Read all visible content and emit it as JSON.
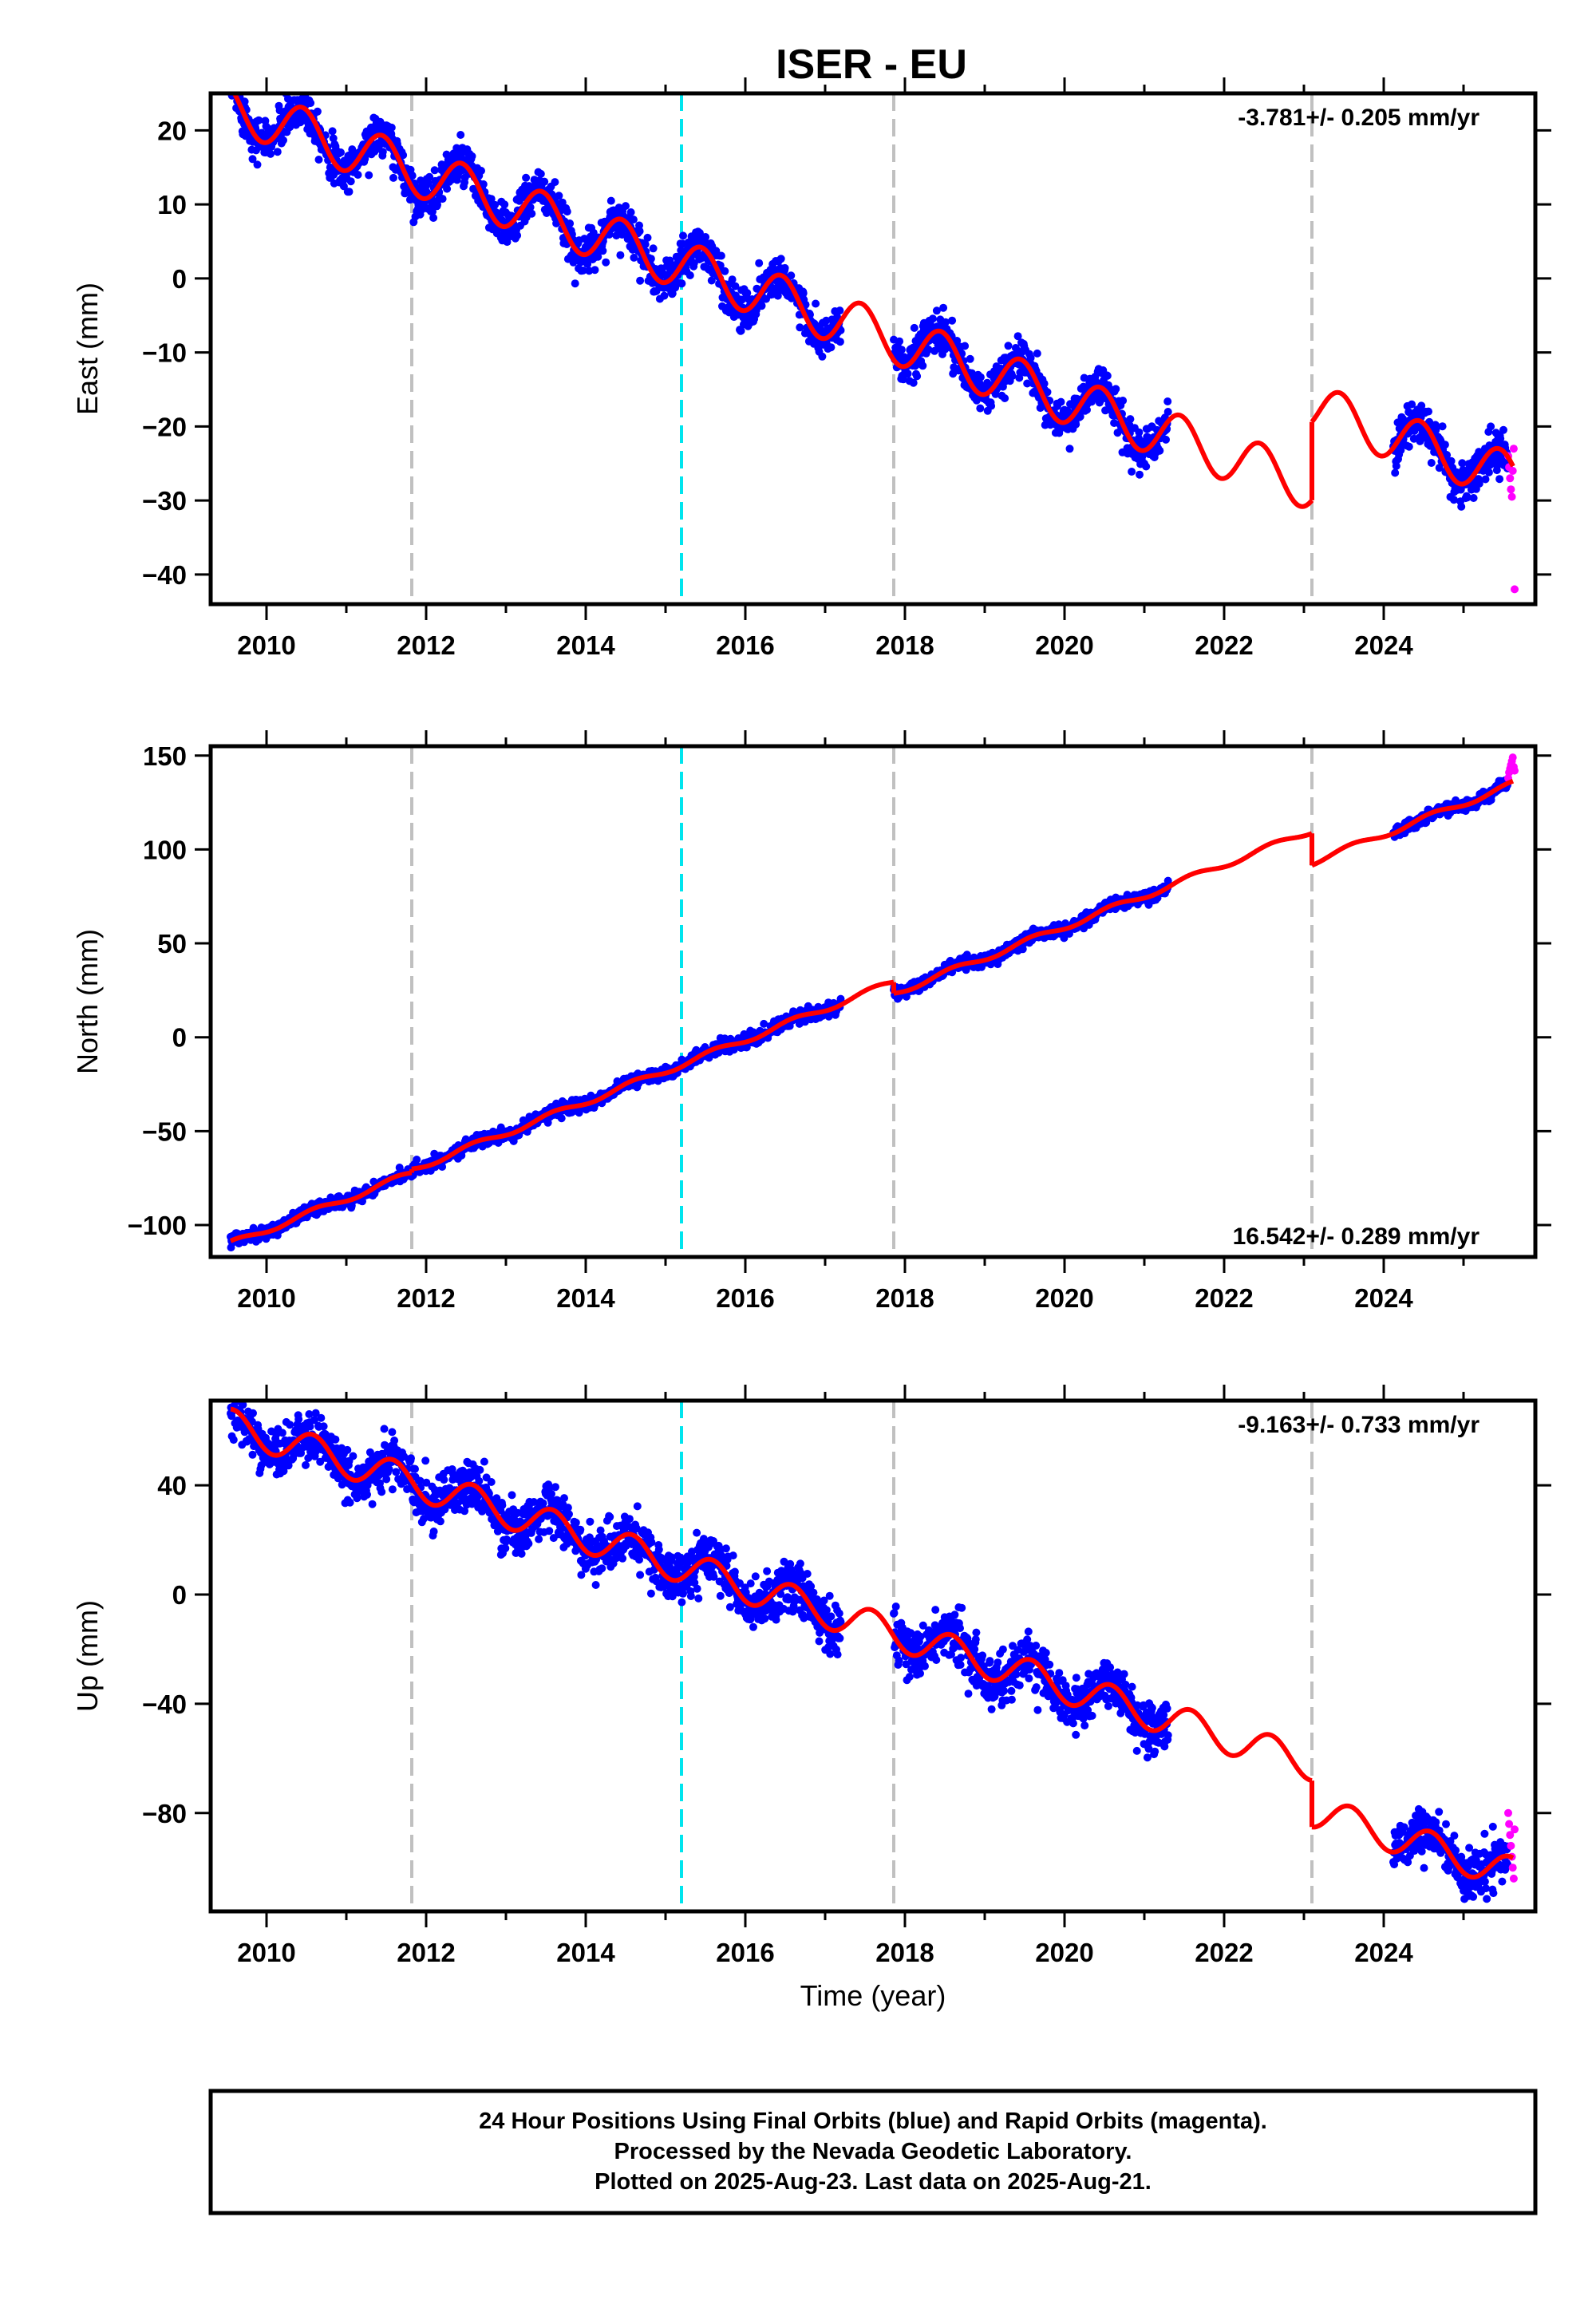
{
  "figure": {
    "title": "ISER - EU",
    "xlabel": "Time (year)",
    "footer": [
      "24 Hour Positions Using Final Orbits (blue) and Rapid Orbits (magenta).",
      "Processed by the Nevada Geodetic Laboratory.",
      "Plotted on 2025-Aug-23. Last data on 2025-Aug-21."
    ],
    "colors": {
      "final": "#0000ff",
      "rapid": "#ff00ff",
      "model": "#ff0000",
      "steps": "#c0c0c0",
      "equipment_change": "#00e5ee"
    }
  },
  "chart_data": [
    {
      "type": "scatter",
      "ylabel": "East (mm)",
      "rate": "-3.781+/- 0.205 mm/yr",
      "rate_position": "top-right",
      "xlim": [
        2009.3,
        2025.9
      ],
      "ylim": [
        -44,
        25
      ],
      "xticks": [
        2010,
        2012,
        2014,
        2016,
        2018,
        2020,
        2022,
        2024
      ],
      "yticks": [
        20,
        10,
        0,
        -10,
        -20,
        -30,
        -40
      ],
      "ytick_labels": [
        "20",
        "10",
        "0",
        "−10",
        "−20",
        "−30",
        "−40"
      ],
      "vlines_gray": [
        2011.82,
        2017.86,
        2023.1
      ],
      "vlines_cyan": [
        2015.2
      ],
      "model": {
        "x0": 2009.55,
        "y0": 23.2,
        "rate": -3.781,
        "amp": 3.3,
        "phase_year": 0.45,
        "segments": [
          [
            2009.55,
            2023.1,
            0
          ],
          [
            2023.1,
            2025.62,
            10.6
          ]
        ]
      },
      "final_data": {
        "ranges": [
          [
            2009.55,
            2017.2
          ],
          [
            2017.86,
            2021.3
          ],
          [
            2024.12,
            2025.56
          ]
        ],
        "scatter_sd": 1.4,
        "spacing_years": 0.0055
      },
      "rapid_data": {
        "range": [
          2025.56,
          2025.64
        ],
        "values": [
          -24,
          -25.5,
          -27,
          -28.5,
          -29.5,
          -26,
          -23,
          -42
        ]
      }
    },
    {
      "type": "scatter",
      "ylabel": "North (mm)",
      "rate": "16.542+/- 0.289 mm/yr",
      "rate_position": "bottom-right",
      "xlim": [
        2009.3,
        2025.9
      ],
      "ylim": [
        -117,
        155
      ],
      "xticks": [
        2010,
        2012,
        2014,
        2016,
        2018,
        2020,
        2022,
        2024
      ],
      "yticks": [
        150,
        100,
        50,
        0,
        -50,
        -100
      ],
      "ytick_labels": [
        "150",
        "100",
        "50",
        "0",
        "−50",
        "−100"
      ],
      "vlines_gray": [
        2011.82,
        2017.86,
        2023.1
      ],
      "vlines_cyan": [
        2015.2
      ],
      "model": {
        "x0": 2009.55,
        "y0": -110,
        "rate": 16.542,
        "amp": 1.6,
        "phase_year": 0.6,
        "segments": [
          [
            2009.55,
            2011.82,
            0
          ],
          [
            2011.82,
            2017.86,
            2
          ],
          [
            2017.86,
            2023.1,
            -4
          ],
          [
            2023.1,
            2025.62,
            -21
          ]
        ]
      },
      "final_data": {
        "ranges": [
          [
            2009.55,
            2017.2
          ],
          [
            2017.86,
            2021.3
          ],
          [
            2024.12,
            2025.56
          ]
        ],
        "scatter_sd": 1.6,
        "spacing_years": 0.0055
      },
      "rapid_data": {
        "range": [
          2025.56,
          2025.64
        ],
        "values": [
          138,
          141,
          143,
          145,
          147,
          149,
          144,
          142
        ]
      }
    },
    {
      "type": "scatter",
      "ylabel": "Up (mm)",
      "rate": "-9.163+/- 0.733 mm/yr",
      "rate_position": "top-right",
      "xlim": [
        2009.3,
        2025.9
      ],
      "ylim": [
        -116,
        71
      ],
      "xticks": [
        2010,
        2012,
        2014,
        2016,
        2018,
        2020,
        2022,
        2024
      ],
      "yticks": [
        40,
        0,
        -40,
        -80
      ],
      "ytick_labels": [
        "40",
        "0",
        "−40",
        "−80"
      ],
      "vlines_gray": [
        2011.82,
        2017.86,
        2023.1
      ],
      "vlines_cyan": [
        2015.2
      ],
      "model": {
        "x0": 2009.55,
        "y0": 62,
        "rate": -9.163,
        "amp": 6,
        "phase_year": 0.58,
        "segments": [
          [
            2009.55,
            2023.1,
            0
          ],
          [
            2023.1,
            2025.62,
            -17
          ]
        ]
      },
      "final_data": {
        "ranges": [
          [
            2009.55,
            2017.2
          ],
          [
            2017.86,
            2021.3
          ],
          [
            2024.12,
            2025.56
          ]
        ],
        "scatter_sd": 4.5,
        "spacing_years": 0.0055
      },
      "rapid_data": {
        "range": [
          2025.56,
          2025.64
        ],
        "values": [
          -80,
          -84,
          -88,
          -92,
          -96,
          -100,
          -104,
          -86
        ]
      }
    }
  ]
}
